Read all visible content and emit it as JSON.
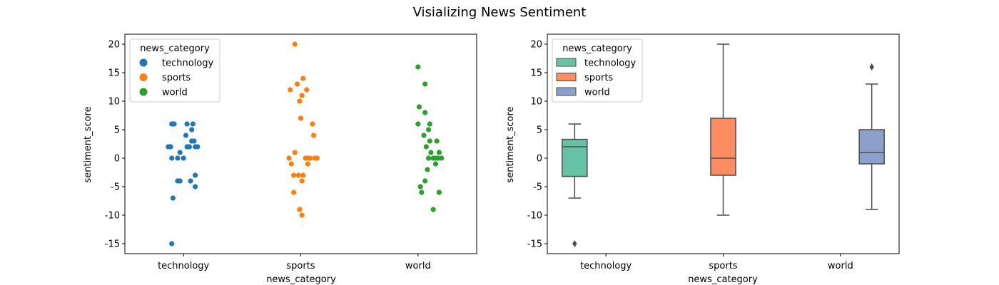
{
  "figure": {
    "title": "Visializing News Sentiment"
  },
  "chart_data": [
    {
      "type": "scatter",
      "subtype": "strip",
      "title": "",
      "xlabel": "news_category",
      "ylabel": "sentiment_score",
      "categories": [
        "technology",
        "sports",
        "world"
      ],
      "ylim": [
        -16.75,
        21.75
      ],
      "yticks": [
        -15,
        -10,
        -5,
        0,
        5,
        10,
        15,
        20
      ],
      "grid": false,
      "legend": {
        "title": "news_category",
        "location": "top-left",
        "entries": [
          "technology",
          "sports",
          "world"
        ]
      },
      "colors": [
        "#1f77b4",
        "#ff7f0e",
        "#2ca02c"
      ],
      "series": [
        {
          "name": "technology",
          "values": [
            6,
            6,
            6,
            6,
            6,
            5,
            4,
            3,
            3,
            2,
            2,
            2,
            2,
            2,
            2,
            1,
            0,
            0,
            0,
            -3,
            -4,
            -4,
            -4,
            -5,
            -7,
            -15
          ],
          "jitter": [
            -0.1,
            -0.08,
            0.03,
            0.08,
            -0.09,
            0.07,
            0.02,
            0.07,
            0.09,
            -0.13,
            -0.11,
            0.03,
            0.05,
            0.1,
            0.12,
            -0.03,
            -0.1,
            -0.05,
            0.0,
            0.1,
            -0.05,
            -0.03,
            0.06,
            0.1,
            -0.09,
            -0.1
          ]
        },
        {
          "name": "sports",
          "values": [
            20,
            14,
            13,
            12,
            12,
            11,
            10,
            7,
            6,
            4,
            1,
            0,
            0,
            0,
            0,
            0,
            0,
            -1,
            -1,
            -3,
            -3,
            -3,
            -4,
            -6,
            -9,
            -10
          ],
          "jitter": [
            -0.05,
            0.02,
            -0.03,
            -0.09,
            0.05,
            0.01,
            -0.01,
            0.0,
            0.1,
            0.11,
            -0.05,
            -0.1,
            0.04,
            0.06,
            0.08,
            0.12,
            0.14,
            -0.08,
            0.06,
            -0.06,
            -0.02,
            0.02,
            0.01,
            -0.06,
            -0.01,
            0.01
          ]
        },
        {
          "name": "world",
          "values": [
            16,
            13,
            9,
            8,
            6,
            6,
            5,
            4,
            3,
            3,
            2,
            1,
            1,
            0,
            0,
            0,
            0,
            0,
            -1,
            -2,
            -4,
            -5,
            -6,
            -6,
            -9
          ],
          "jitter": [
            0.0,
            0.06,
            0.01,
            0.06,
            0.0,
            0.1,
            0.09,
            0.05,
            0.16,
            0.1,
            0.07,
            0.11,
            0.18,
            0.09,
            0.13,
            0.15,
            0.17,
            0.2,
            0.15,
            0.08,
            0.06,
            0.02,
            0.03,
            0.18,
            0.13
          ]
        }
      ]
    },
    {
      "type": "box",
      "title": "",
      "xlabel": "news_category",
      "ylabel": "sentiment_score",
      "categories": [
        "technology",
        "sports",
        "world"
      ],
      "ylim": [
        -16.75,
        21.75
      ],
      "yticks": [
        -15,
        -10,
        -5,
        0,
        5,
        10,
        15,
        20
      ],
      "grid": false,
      "legend": {
        "title": "news_category",
        "location": "top-left",
        "entries": [
          "technology",
          "sports",
          "world"
        ]
      },
      "colors": [
        "#66c2a5",
        "#fc8d62",
        "#8da0cb"
      ],
      "series": [
        {
          "name": "technology",
          "whisker_low": -7,
          "q1": -3.2,
          "median": 2,
          "q3": 3.3,
          "whisker_high": 6,
          "outliers": [
            -15
          ]
        },
        {
          "name": "sports",
          "whisker_low": -10,
          "q1": -3,
          "median": 0,
          "q3": 7,
          "whisker_high": 20,
          "outliers": []
        },
        {
          "name": "world",
          "whisker_low": -9,
          "q1": -1,
          "median": 1,
          "q3": 5,
          "whisker_high": 13,
          "outliers": [
            16
          ]
        }
      ]
    }
  ]
}
